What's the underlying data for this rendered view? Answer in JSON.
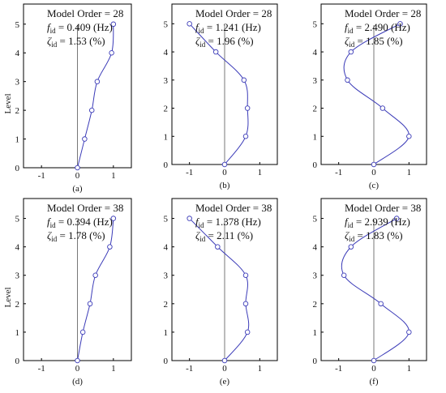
{
  "chart_data": [
    {
      "type": "line",
      "panel_label": "(a)",
      "ylabel": "Level",
      "order_label": "Model Order = 28",
      "f_label": "0.409 (Hz)",
      "z_label": "1.53 (%)",
      "x_ticks": [
        "-1",
        "0",
        "1"
      ],
      "y_ticks": [
        "0",
        "1",
        "2",
        "3",
        "4",
        "5"
      ],
      "xlim": [
        -1.5,
        1.5
      ],
      "ylim": [
        0,
        5.7
      ],
      "series": [
        {
          "levels": [
            0,
            1,
            2,
            3,
            4,
            5
          ],
          "values": [
            0.0,
            0.2,
            0.4,
            0.55,
            0.95,
            1.0
          ]
        }
      ]
    },
    {
      "type": "line",
      "panel_label": "(b)",
      "ylabel": "",
      "order_label": "Model Order = 28",
      "f_label": "1.241 (Hz)",
      "z_label": "1.96 (%)",
      "x_ticks": [
        "-1",
        "0",
        "1"
      ],
      "y_ticks": [
        "0",
        "1",
        "2",
        "3",
        "4",
        "5"
      ],
      "xlim": [
        -1.5,
        1.5
      ],
      "ylim": [
        0,
        5.7
      ],
      "series": [
        {
          "levels": [
            0,
            1,
            2,
            3,
            4,
            5
          ],
          "values": [
            0.0,
            0.6,
            0.65,
            0.55,
            -0.25,
            -1.0
          ]
        }
      ]
    },
    {
      "type": "line",
      "panel_label": "(c)",
      "ylabel": "",
      "order_label": "Model Order = 28",
      "f_label": "2.490 (Hz)",
      "z_label": "1.85 (%)",
      "x_ticks": [
        "-1",
        "0",
        "1"
      ],
      "y_ticks": [
        "0",
        "1",
        "2",
        "3",
        "4",
        "5"
      ],
      "xlim": [
        -1.5,
        1.5
      ],
      "ylim": [
        0,
        5.7
      ],
      "series": [
        {
          "levels": [
            0,
            1,
            2,
            3,
            4,
            5
          ],
          "values": [
            0.0,
            1.0,
            0.25,
            -0.75,
            -0.65,
            0.75
          ]
        }
      ]
    },
    {
      "type": "line",
      "panel_label": "(d)",
      "ylabel": "Level",
      "order_label": "Model Order = 38",
      "f_label": "0.394 (Hz)",
      "z_label": "1.78 (%)",
      "x_ticks": [
        "-1",
        "0",
        "1"
      ],
      "y_ticks": [
        "0",
        "1",
        "2",
        "3",
        "4",
        "5"
      ],
      "xlim": [
        -1.5,
        1.5
      ],
      "ylim": [
        0,
        5.7
      ],
      "series": [
        {
          "levels": [
            0,
            1,
            2,
            3,
            4,
            5
          ],
          "values": [
            0.0,
            0.15,
            0.35,
            0.5,
            0.9,
            1.0
          ]
        }
      ]
    },
    {
      "type": "line",
      "panel_label": "(e)",
      "ylabel": "",
      "order_label": "Model Order = 38",
      "f_label": "1.378 (Hz)",
      "z_label": "2.11 (%)",
      "x_ticks": [
        "-1",
        "0",
        "1"
      ],
      "y_ticks": [
        "0",
        "1",
        "2",
        "3",
        "4",
        "5"
      ],
      "xlim": [
        -1.5,
        1.5
      ],
      "ylim": [
        0,
        5.7
      ],
      "series": [
        {
          "levels": [
            0,
            1,
            2,
            3,
            4,
            5
          ],
          "values": [
            0.0,
            0.65,
            0.6,
            0.6,
            -0.2,
            -1.0
          ]
        }
      ]
    },
    {
      "type": "line",
      "panel_label": "(f)",
      "ylabel": "",
      "order_label": "Model Order = 38",
      "f_label": "2.939 (Hz)",
      "z_label": "1.83 (%)",
      "x_ticks": [
        "-1",
        "0",
        "1"
      ],
      "y_ticks": [
        "0",
        "1",
        "2",
        "3",
        "4",
        "5"
      ],
      "xlim": [
        -1.5,
        1.5
      ],
      "ylim": [
        0,
        5.7
      ],
      "series": [
        {
          "levels": [
            0,
            1,
            2,
            3,
            4,
            5
          ],
          "values": [
            0.0,
            1.0,
            0.2,
            -0.85,
            -0.65,
            0.65
          ]
        }
      ]
    }
  ],
  "symbols": {
    "f": "f",
    "zeta": "ζ",
    "sub": "id",
    "eq": " = "
  }
}
